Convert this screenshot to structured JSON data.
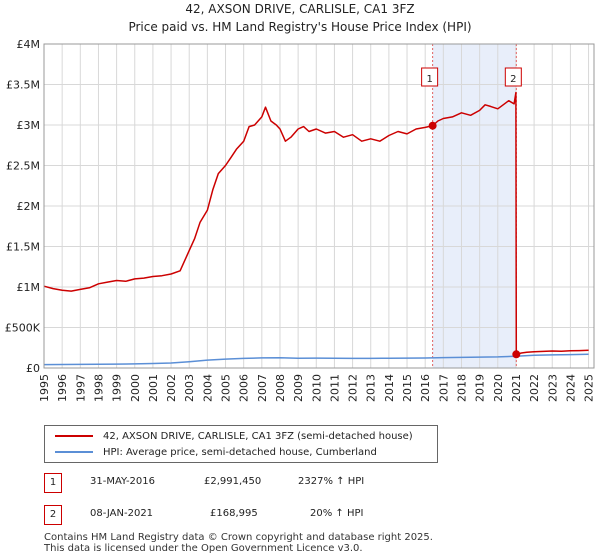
{
  "header": {
    "title": "42, AXSON DRIVE, CARLISLE, CA1 3FZ",
    "subtitle": "Price paid vs. HM Land Registry's House Price Index (HPI)"
  },
  "colors": {
    "property": "#cc0000",
    "hpi": "#5b8fd6",
    "shade": "#e8eefa",
    "vline": "#e06060",
    "grid": "#d8d8d8"
  },
  "chart_data": {
    "type": "line",
    "title": "42, AXSON DRIVE, CARLISLE, CA1 3FZ",
    "subtitle": "Price paid vs. HM Land Registry's House Price Index (HPI)",
    "xlabel": "",
    "ylabel": "",
    "xlim": [
      1995,
      2025.3
    ],
    "ylim": [
      0,
      4000000
    ],
    "grid": true,
    "y_ticks": [
      {
        "value": 0,
        "label": "£0"
      },
      {
        "value": 500000,
        "label": "£500K"
      },
      {
        "value": 1000000,
        "label": "£1M"
      },
      {
        "value": 1500000,
        "label": "£1.5M"
      },
      {
        "value": 2000000,
        "label": "£2M"
      },
      {
        "value": 2500000,
        "label": "£2.5M"
      },
      {
        "value": 3000000,
        "label": "£3M"
      },
      {
        "value": 3500000,
        "label": "£3.5M"
      },
      {
        "value": 4000000,
        "label": "£4M"
      }
    ],
    "x_ticks": [
      "1995",
      "1996",
      "1997",
      "1998",
      "1999",
      "2000",
      "2001",
      "2002",
      "2003",
      "2004",
      "2005",
      "2006",
      "2007",
      "2008",
      "2009",
      "2010",
      "2011",
      "2012",
      "2013",
      "2014",
      "2015",
      "2016",
      "2017",
      "2018",
      "2019",
      "2020",
      "2021",
      "2022",
      "2023",
      "2024",
      "2025"
    ],
    "shaded_range": [
      2016.41,
      2021.02
    ],
    "series": [
      {
        "name": "42, AXSON DRIVE, CARLISLE, CA1 3FZ (semi-detached house)",
        "x": [
          1995,
          1995.5,
          1996,
          1996.5,
          1997,
          1997.5,
          1998,
          1998.5,
          1999,
          1999.5,
          2000,
          2000.5,
          2001,
          2001.5,
          2002,
          2002.5,
          2003,
          2003.3,
          2003.6,
          2004,
          2004.3,
          2004.6,
          2005,
          2005.3,
          2005.6,
          2006,
          2006.3,
          2006.6,
          2007,
          2007.2,
          2007.5,
          2007.8,
          2008,
          2008.3,
          2008.6,
          2009,
          2009.3,
          2009.6,
          2010,
          2010.5,
          2011,
          2011.5,
          2012,
          2012.5,
          2013,
          2013.5,
          2014,
          2014.5,
          2015,
          2015.5,
          2016,
          2016.41,
          2016.7,
          2017,
          2017.5,
          2018,
          2018.5,
          2019,
          2019.3,
          2019.6,
          2020,
          2020.3,
          2020.6,
          2020.9,
          2021.0,
          2021.02,
          2021.3,
          2021.6,
          2022,
          2022.5,
          2023,
          2023.5,
          2024,
          2024.5,
          2025
        ],
        "y": [
          1010000,
          980000,
          960000,
          950000,
          970000,
          990000,
          1040000,
          1060000,
          1080000,
          1070000,
          1100000,
          1110000,
          1130000,
          1140000,
          1160000,
          1200000,
          1450000,
          1600000,
          1800000,
          1950000,
          2200000,
          2400000,
          2500000,
          2600000,
          2700000,
          2800000,
          2980000,
          3000000,
          3100000,
          3220000,
          3050000,
          3000000,
          2950000,
          2800000,
          2850000,
          2950000,
          2980000,
          2920000,
          2950000,
          2900000,
          2920000,
          2850000,
          2880000,
          2800000,
          2830000,
          2800000,
          2870000,
          2920000,
          2890000,
          2950000,
          2970000,
          2991450,
          3050000,
          3080000,
          3100000,
          3150000,
          3120000,
          3180000,
          3250000,
          3230000,
          3200000,
          3250000,
          3300000,
          3260000,
          3400000,
          168995,
          185000,
          195000,
          200000,
          205000,
          210000,
          208000,
          212000,
          215000,
          220000
        ]
      },
      {
        "name": "HPI: Average price, semi-detached house, Cumberland",
        "x": [
          1995,
          1996,
          1997,
          1998,
          1999,
          2000,
          2001,
          2002,
          2003,
          2004,
          2005,
          2006,
          2007,
          2008,
          2009,
          2010,
          2011,
          2012,
          2013,
          2014,
          2015,
          2016,
          2017,
          2018,
          2019,
          2020,
          2021,
          2022,
          2023,
          2024,
          2025
        ],
        "y": [
          42000,
          43000,
          44000,
          46000,
          48000,
          51000,
          55000,
          62000,
          78000,
          98000,
          110000,
          118000,
          125000,
          126000,
          121000,
          122000,
          120000,
          119000,
          119000,
          121000,
          122000,
          124000,
          128000,
          131000,
          134000,
          137000,
          146000,
          158000,
          162000,
          166000,
          170000
        ]
      }
    ],
    "annotations": [
      {
        "label": "1",
        "x": 2016.41,
        "y": 2991450
      },
      {
        "label": "2",
        "x": 2021.02,
        "y": 168995
      }
    ]
  },
  "legend": {
    "items": [
      {
        "label": "42, AXSON DRIVE, CARLISLE, CA1 3FZ (semi-detached house)"
      },
      {
        "label": "HPI: Average price, semi-detached house, Cumberland"
      }
    ]
  },
  "transactions": [
    {
      "num": "1",
      "date": "31-MAY-2016",
      "price": "£2,991,450",
      "hpi": "2327% ↑ HPI"
    },
    {
      "num": "2",
      "date": "08-JAN-2021",
      "price": "£168,995",
      "hpi": "20% ↑ HPI"
    }
  ],
  "footer": {
    "line1": "Contains HM Land Registry data © Crown copyright and database right 2025.",
    "line2": "This data is licensed under the Open Government Licence v3.0."
  }
}
